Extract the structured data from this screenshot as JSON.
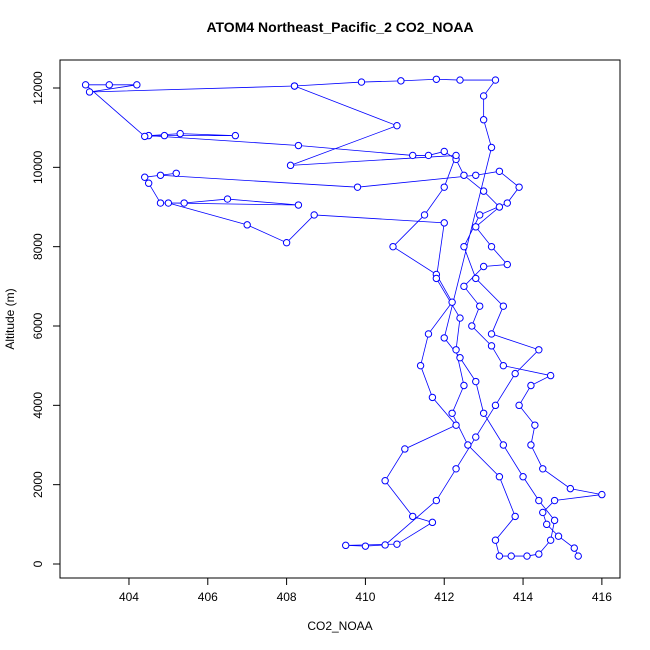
{
  "chart_data": {
    "type": "line",
    "title": "ATOM4 Northeast_Pacific_2 CO2_NOAA",
    "xlabel": "CO2_NOAA",
    "ylabel": "Altitude (m)",
    "color": "#0000ff",
    "x": [
      415.4,
      415.3,
      414.9,
      414.6,
      414.5,
      414.8,
      416.0,
      415.2,
      414.5,
      414.2,
      414.3,
      413.9,
      414.2,
      414.7,
      413.5,
      413.2,
      412.7,
      412.9,
      412.5,
      413.0,
      413.6,
      413.2,
      412.8,
      413.4,
      413.0,
      412.5,
      412.3,
      412.0,
      411.6,
      411.2,
      408.3,
      404.5,
      405.3,
      406.7,
      404.9,
      404.4,
      402.9,
      403.5,
      404.2,
      403.0,
      408.2,
      410.8,
      408.1,
      412.3,
      412.0,
      411.5,
      410.7,
      411.8,
      412.2,
      411.6,
      411.4,
      411.7,
      412.3,
      411.0,
      410.5,
      411.2,
      411.7,
      410.8,
      409.5,
      410.0,
      410.5,
      411.8,
      412.3,
      412.8,
      413.3,
      413.8,
      414.4,
      413.2,
      413.5,
      412.8,
      412.5,
      412.9,
      413.6,
      413.9,
      413.4,
      412.8,
      409.8,
      404.8,
      405.2,
      404.4,
      404.5,
      404.8,
      405.4,
      406.5,
      408.3,
      405.0,
      407.0,
      408.0,
      408.7,
      412.0,
      411.8,
      412.4,
      412.3,
      412.5,
      412.2,
      412.6,
      413.4,
      413.8,
      413.3,
      413.4,
      413.7,
      414.1,
      414.4,
      414.7,
      414.8,
      414.4,
      414.0,
      413.5,
      413.0,
      412.8,
      412.4,
      412.0,
      413.2,
      413.0,
      413.0,
      413.3,
      412.4,
      411.8,
      410.9,
      409.9,
      408.2
    ],
    "y": [
      200,
      400,
      700,
      1000,
      1300,
      1600,
      1750,
      1900,
      2400,
      3000,
      3500,
      4000,
      4500,
      4750,
      5000,
      5500,
      6000,
      6500,
      7000,
      7500,
      7550,
      8000,
      8500,
      9000,
      9400,
      9800,
      10200,
      10400,
      10300,
      10300,
      10550,
      10800,
      10850,
      10800,
      10800,
      10780,
      12080,
      12080,
      12080,
      11900,
      12050,
      11050,
      10050,
      10300,
      9500,
      8800,
      8000,
      7300,
      6600,
      5800,
      5000,
      4200,
      3500,
      2900,
      2100,
      1200,
      1050,
      500,
      470,
      450,
      480,
      1600,
      2400,
      3200,
      4000,
      4800,
      5400,
      5800,
      6500,
      7200,
      8000,
      8800,
      9100,
      9500,
      9900,
      9800,
      9500,
      9800,
      9850,
      9750,
      9600,
      9100,
      9100,
      9200,
      9050,
      9100,
      8550,
      8100,
      8800,
      8600,
      7200,
      6200,
      5400,
      4500,
      3800,
      3000,
      2200,
      1200,
      600,
      200,
      200,
      200,
      250,
      600,
      1100,
      1600,
      2200,
      3000,
      3800,
      4600,
      5200,
      5700,
      10500,
      11200,
      11800,
      12200,
      12200,
      12220,
      12180,
      12150,
      12050
    ],
    "xlim": [
      402.25,
      416.46
    ],
    "ylim": [
      -353,
      12706
    ],
    "xticks": [
      404,
      406,
      408,
      410,
      412,
      414,
      416
    ],
    "yticks": [
      0,
      2000,
      4000,
      6000,
      8000,
      10000,
      12000
    ]
  }
}
